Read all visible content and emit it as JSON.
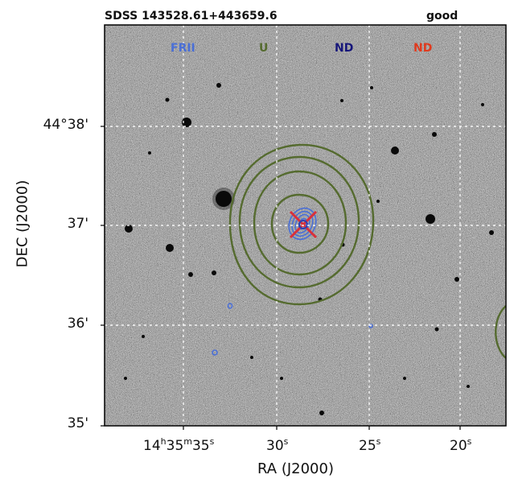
{
  "header": {
    "object_name": "SDSS 143528.61+443659.6",
    "quality": "good"
  },
  "legend": [
    {
      "label": "FRII",
      "color": "#4a6fd6"
    },
    {
      "label": "U",
      "color": "#556b2f"
    },
    {
      "label": "ND",
      "color": "#16167a"
    },
    {
      "label": "ND",
      "color": "#e03a1e"
    }
  ],
  "axes": {
    "xlabel": "RA (J2000)",
    "ylabel": "DEC (J2000)",
    "x_ticks": [
      {
        "h": "14",
        "m": "35",
        "s": "35"
      },
      {
        "s": "30"
      },
      {
        "s": "25"
      },
      {
        "s": "20"
      }
    ],
    "y_ticks": [
      "44°38'",
      "37'",
      "36'",
      "35'"
    ],
    "h_unit": "h",
    "m_unit": "m",
    "s_unit": "s"
  },
  "colors": {
    "contour_green": "#556b2f",
    "contour_blue": "#4a6fd6",
    "marker_red": "#d9303a",
    "marker_blue": "#3b4fd6",
    "grid": "#ffffff"
  }
}
